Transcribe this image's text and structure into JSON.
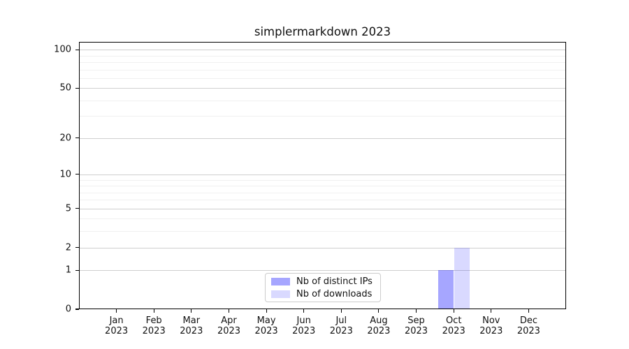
{
  "chart_data": {
    "type": "bar",
    "title": "simplermarkdown 2023",
    "categories": [
      "Jan 2023",
      "Feb 2023",
      "Mar 2023",
      "Apr 2023",
      "May 2023",
      "Jun 2023",
      "Jul 2023",
      "Aug 2023",
      "Sep 2023",
      "Oct 2023",
      "Nov 2023",
      "Dec 2023"
    ],
    "series": [
      {
        "name": "Nb of distinct IPs",
        "color": "rgba(0,0,255,0.35)",
        "values": [
          0,
          0,
          0,
          0,
          0,
          0,
          0,
          0,
          0,
          1,
          0,
          0
        ]
      },
      {
        "name": "Nb of downloads",
        "color": "rgba(0,0,255,0.15)",
        "values": [
          0,
          0,
          0,
          0,
          0,
          0,
          0,
          0,
          0,
          2,
          0,
          0
        ]
      }
    ],
    "yscale": "log1p",
    "yticks": [
      0,
      1,
      2,
      5,
      10,
      20,
      50,
      100
    ],
    "minor_yticks": [
      3,
      4,
      6,
      7,
      8,
      9,
      30,
      40,
      60,
      70,
      80,
      90
    ],
    "ylim": [
      0,
      115
    ],
    "xlabel": "",
    "ylabel": "",
    "grid": "on",
    "legend_position": "lower center",
    "colors": {
      "spine": "#000000",
      "grid_major": "#cfcfcf",
      "grid_minor": "#f0f0f0",
      "text": "#111111",
      "background": "#ffffff"
    }
  }
}
